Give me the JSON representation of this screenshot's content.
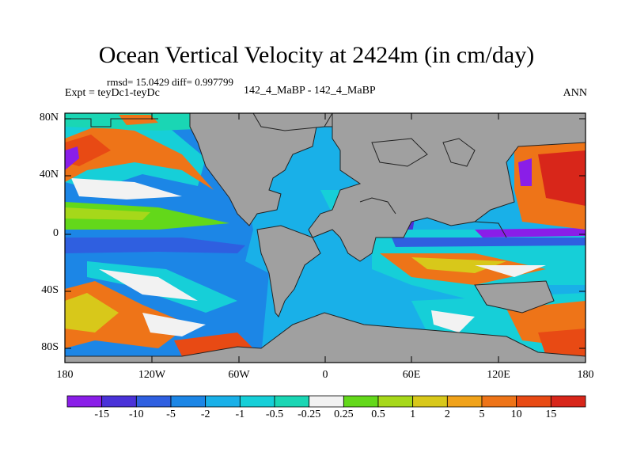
{
  "title": "Ocean Vertical Velocity at 2424m (in cm/day)",
  "stats": "rmsd= 15.0429 diff= 0.997799",
  "expt": "Expt = teyDc1-teyDc",
  "center_label": "142_4_MaBP - 142_4_MaBP",
  "season": "ANN",
  "y_axis_labels": [
    "80N",
    "40N",
    "0",
    "40S",
    "80S"
  ],
  "x_axis_labels": [
    "180",
    "120W",
    "60W",
    "0",
    "60E",
    "120E",
    "180"
  ],
  "colorbar": {
    "labels": [
      "-15",
      "-10",
      "-5",
      "-2",
      "-1",
      "-0.5",
      "-0.25",
      "0.25",
      "0.5",
      "1",
      "2",
      "5",
      "10",
      "15"
    ],
    "colors": [
      "#8a1ee8",
      "#4a32d8",
      "#2f5fe0",
      "#1c86e6",
      "#19b0e8",
      "#16cfd8",
      "#1ad6b4",
      "#f2f2f2",
      "#63d81a",
      "#a6d81a",
      "#d8c81a",
      "#f0a21a",
      "#ee7418",
      "#e84a14",
      "#d8261a"
    ]
  },
  "land_color": "#a0a0a0"
}
